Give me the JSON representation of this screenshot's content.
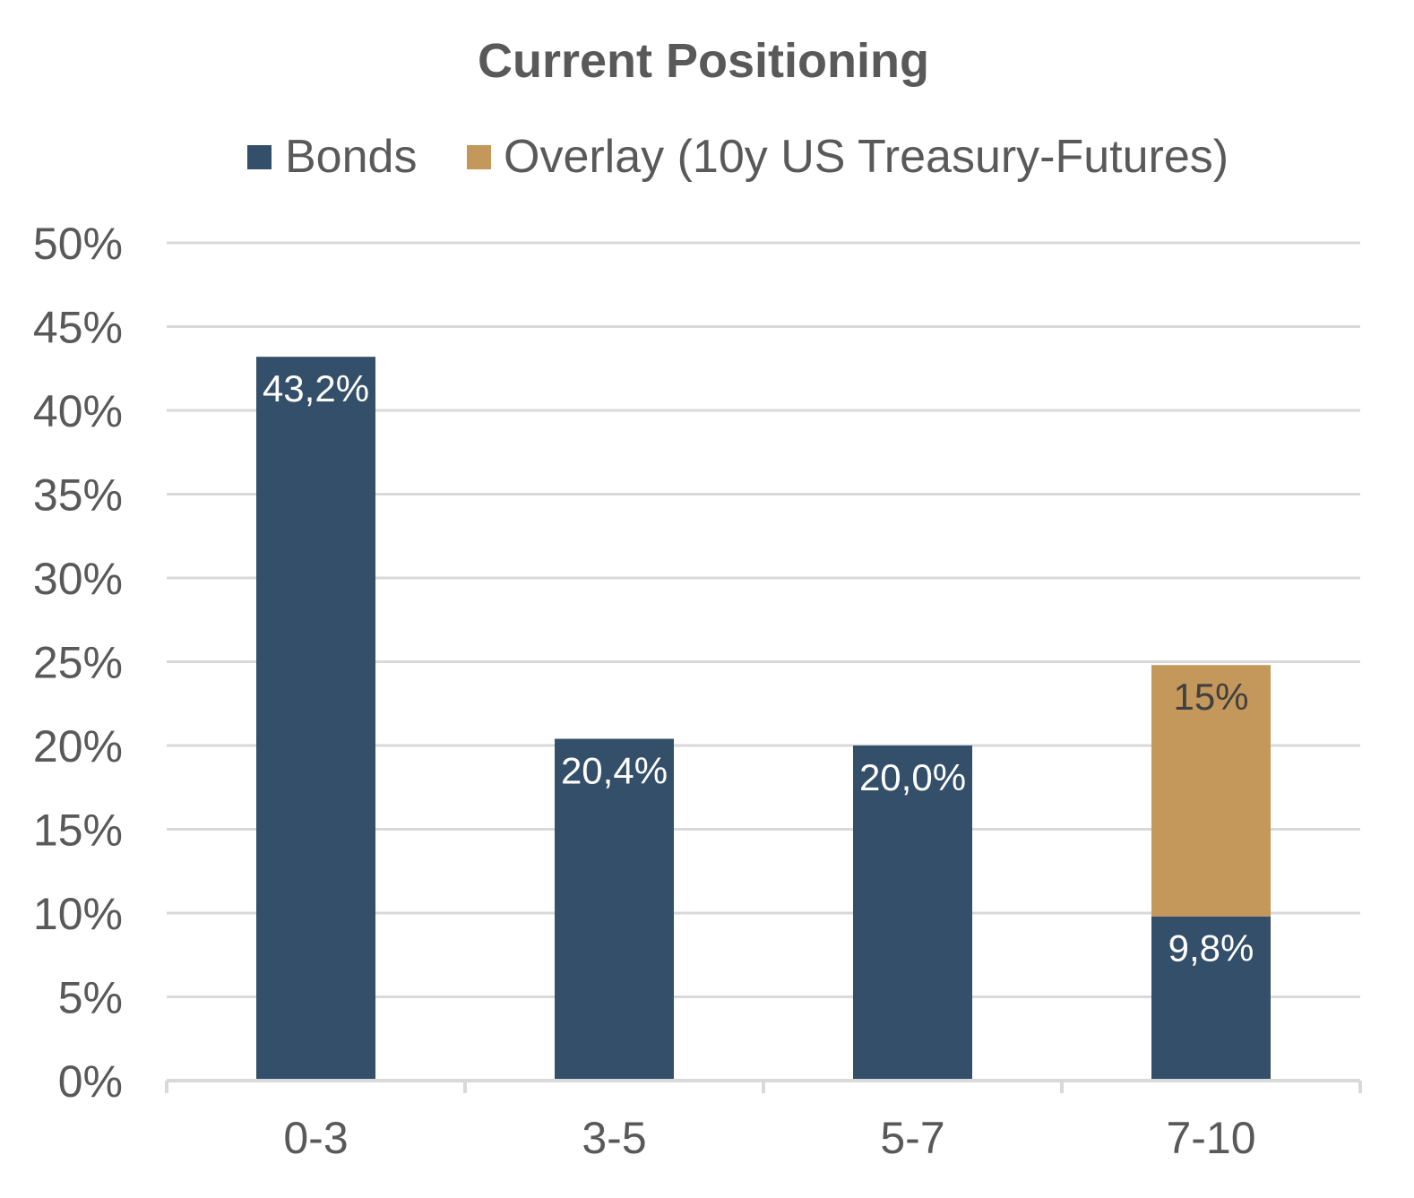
{
  "chart_data": {
    "type": "bar",
    "stacked": true,
    "title": "Current Positioning",
    "xlabel": "",
    "ylabel": "",
    "categories": [
      "0-3",
      "3-5",
      "5-7",
      "7-10"
    ],
    "series": [
      {
        "name": "Bonds",
        "color": "#344F6A",
        "label_color": "#FFFFFF",
        "values": [
          43.2,
          20.4,
          20.0,
          9.8
        ],
        "labels": [
          "43,2%",
          "20,4%",
          "20,0%",
          "9,8%"
        ]
      },
      {
        "name": "Overlay (10y US Treasury-Futures)",
        "color": "#C4975A",
        "label_color": "#404040",
        "values": [
          0,
          0,
          0,
          15
        ],
        "labels": [
          "",
          "",
          "",
          "15%"
        ]
      }
    ],
    "ylim": [
      0,
      50
    ],
    "yticks": [
      0,
      5,
      10,
      15,
      20,
      25,
      30,
      35,
      40,
      45,
      50
    ],
    "ytick_labels": [
      "0%",
      "5%",
      "10%",
      "15%",
      "20%",
      "25%",
      "30%",
      "35%",
      "40%",
      "45%",
      "50%"
    ],
    "grid": true,
    "gridline_color": "#D9D9D9",
    "axis_color": "#D9D9D9",
    "legend_position": "top"
  }
}
